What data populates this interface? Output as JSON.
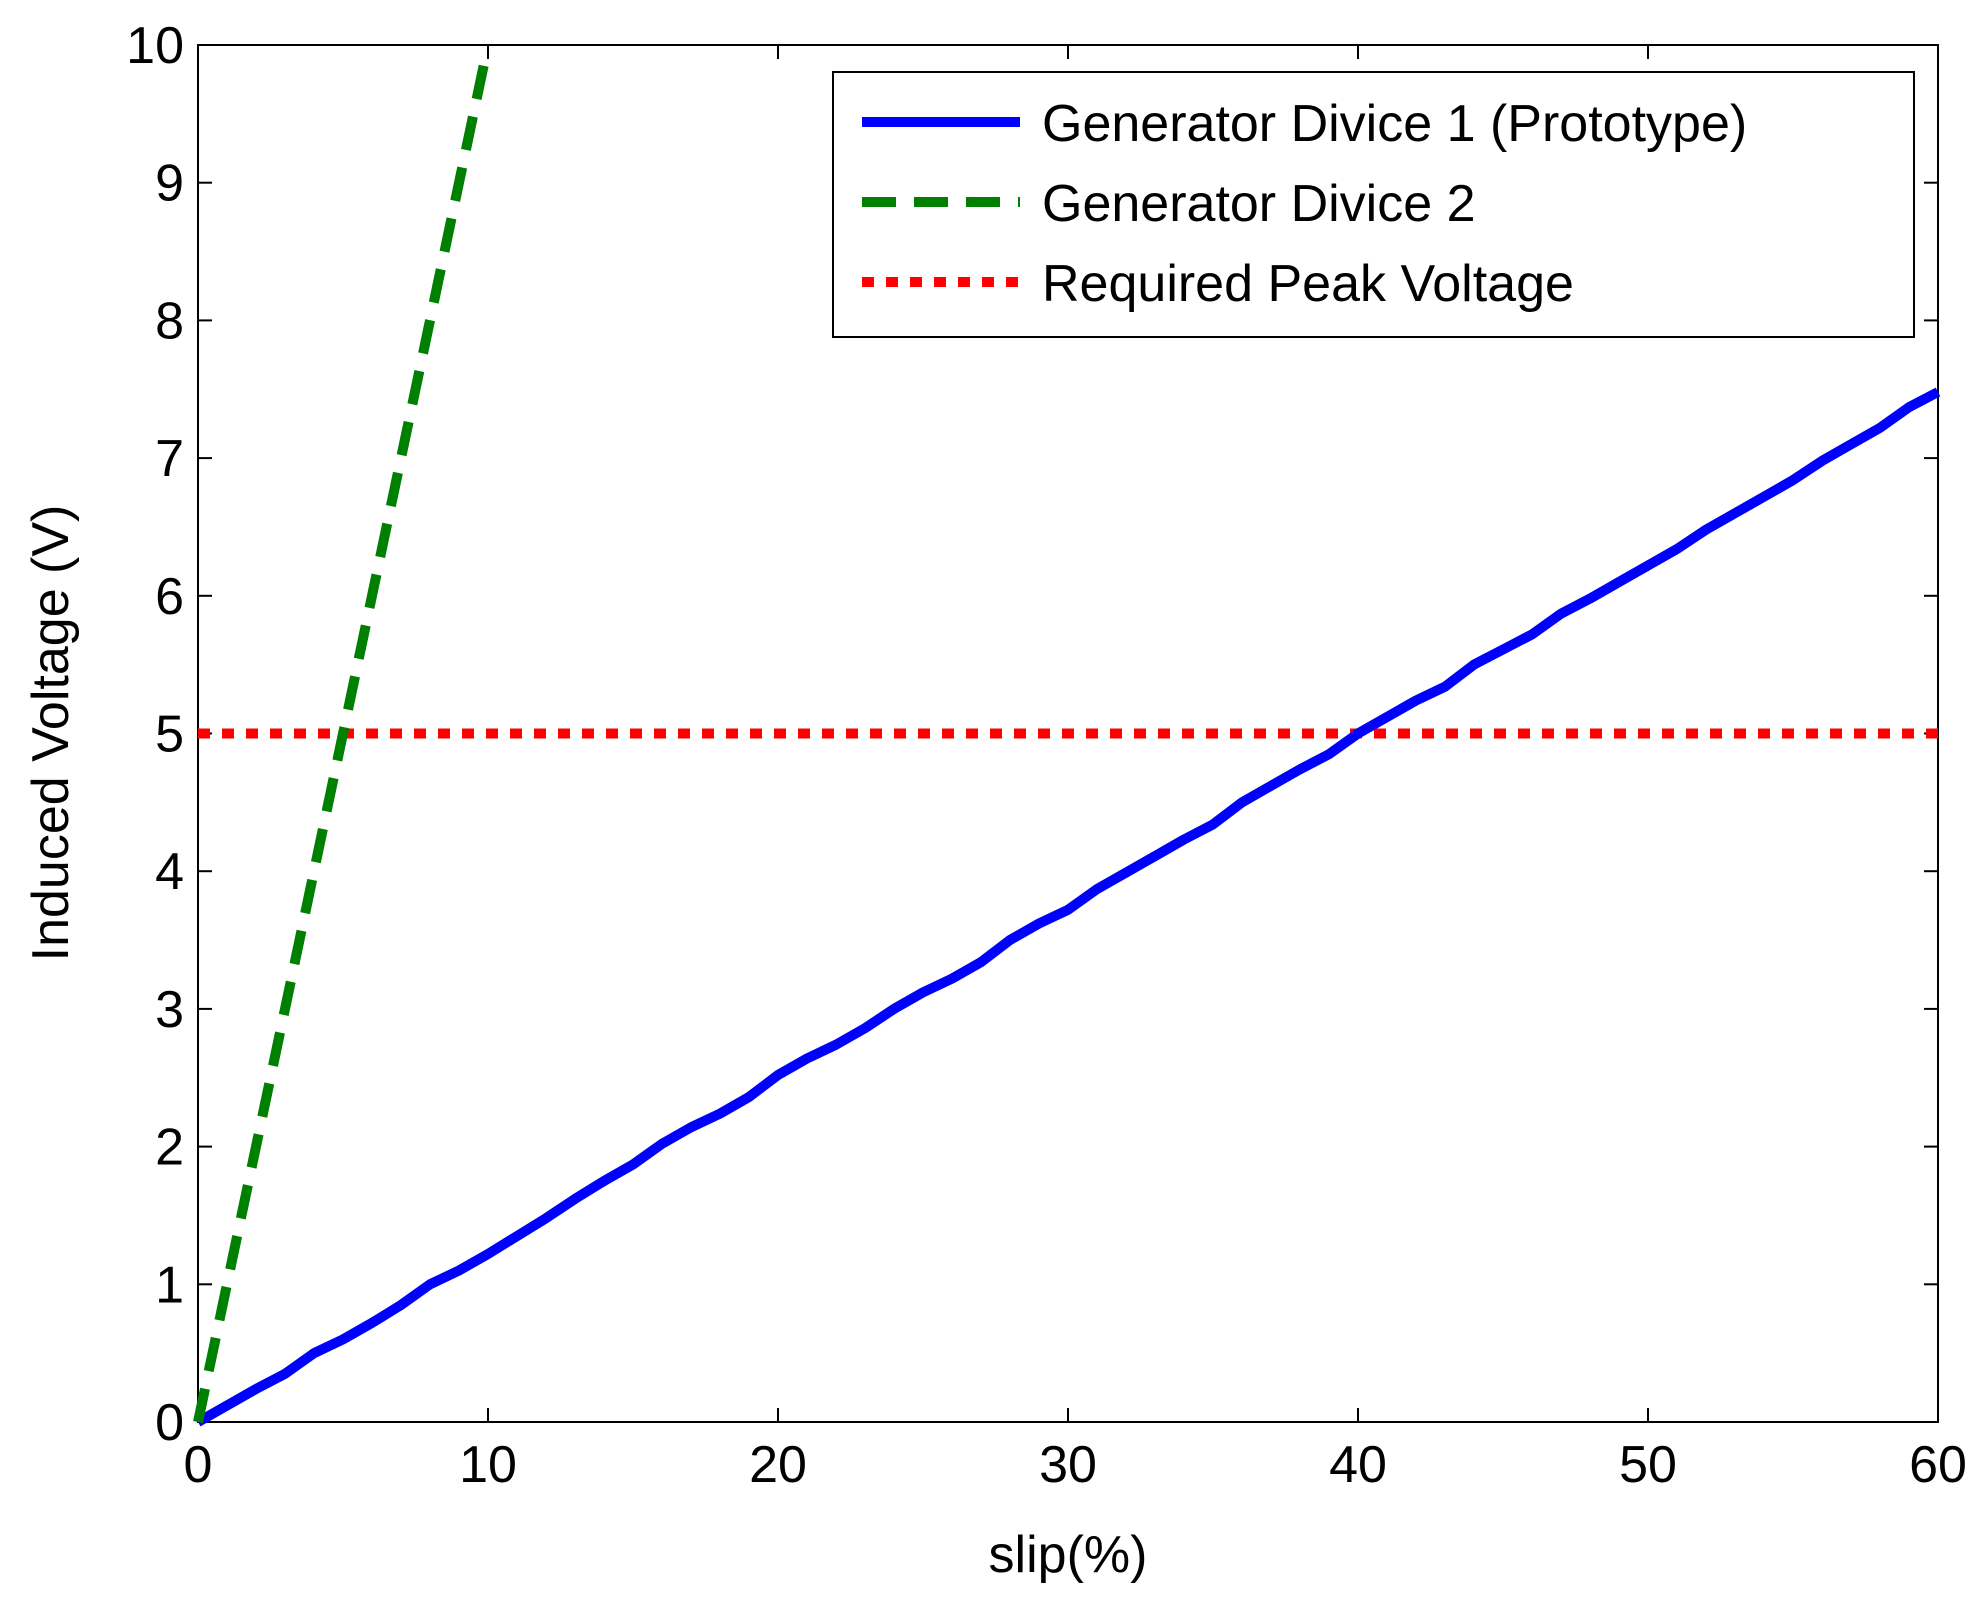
{
  "chart_data": {
    "type": "line",
    "title": "",
    "xlabel": "slip(%)",
    "ylabel": "Induced Voltage (V)",
    "xlim": [
      0,
      60
    ],
    "ylim": [
      0,
      10
    ],
    "xticks": [
      "0",
      "10",
      "20",
      "30",
      "40",
      "50",
      "60"
    ],
    "yticks": [
      "0",
      "1",
      "2",
      "3",
      "4",
      "5",
      "6",
      "7",
      "8",
      "9",
      "10"
    ],
    "grid": false,
    "legend_position": "top-right",
    "series": [
      {
        "name": "Generator Divice 1 (Prototype)",
        "color": "#0000ff",
        "style": "solid",
        "x": [
          0,
          1,
          2,
          3,
          4,
          5,
          6,
          7,
          8,
          9,
          10,
          11,
          12,
          13,
          14,
          15,
          16,
          17,
          18,
          19,
          20,
          21,
          22,
          23,
          24,
          25,
          26,
          27,
          28,
          29,
          30,
          31,
          32,
          33,
          34,
          35,
          36,
          37,
          38,
          39,
          40,
          41,
          42,
          43,
          44,
          45,
          46,
          47,
          48,
          49,
          50,
          51,
          52,
          53,
          54,
          55,
          56,
          57,
          58,
          59,
          60
        ],
        "y": [
          0,
          0.12,
          0.24,
          0.35,
          0.5,
          0.6,
          0.72,
          0.85,
          1.0,
          1.1,
          1.22,
          1.35,
          1.48,
          1.62,
          1.75,
          1.87,
          2.02,
          2.14,
          2.24,
          2.36,
          2.52,
          2.64,
          2.74,
          2.86,
          3.0,
          3.12,
          3.22,
          3.34,
          3.5,
          3.62,
          3.72,
          3.87,
          3.99,
          4.11,
          4.23,
          4.34,
          4.5,
          4.62,
          4.74,
          4.85,
          5.0,
          5.12,
          5.24,
          5.34,
          5.5,
          5.61,
          5.72,
          5.87,
          5.98,
          6.1,
          6.22,
          6.34,
          6.48,
          6.6,
          6.72,
          6.84,
          6.98,
          7.1,
          7.22,
          7.37,
          7.48
        ]
      },
      {
        "name": "Generator Divice 2",
        "color": "#008000",
        "style": "dashed",
        "x": [
          0,
          9.9
        ],
        "y": [
          0,
          9.9
        ]
      },
      {
        "name": "Required Peak Voltage",
        "color": "#ff0000",
        "style": "dotted",
        "x": [
          0,
          60
        ],
        "y": [
          5,
          5
        ]
      }
    ]
  }
}
